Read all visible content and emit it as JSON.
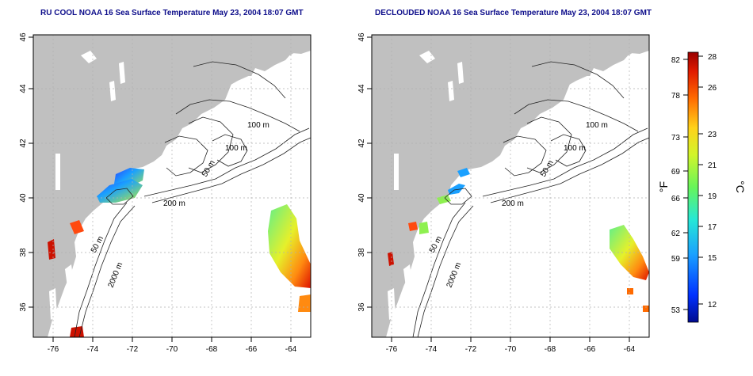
{
  "maps": [
    {
      "title": "RU COOL NOAA 16 Sea Surface Temperature May 23, 2004 18:07 GMT",
      "x_ticks": [
        "-76",
        "-74",
        "-72",
        "-70",
        "-68",
        "-66",
        "-64"
      ],
      "y_ticks": [
        "36",
        "38",
        "40",
        "42",
        "44",
        "46"
      ],
      "contour_labels": [
        "100 m",
        "100 m",
        "50 m",
        "200 m",
        "50 m",
        "2000 m"
      ]
    },
    {
      "title": "DECLOUDED NOAA 16 Sea Surface Temperature May 23, 2004 18:07 GMT",
      "x_ticks": [
        "-76",
        "-74",
        "-72",
        "-70",
        "-68",
        "-66",
        "-64"
      ],
      "y_ticks": [
        "36",
        "38",
        "40",
        "42",
        "44",
        "46"
      ],
      "contour_labels": [
        "100 m",
        "100 m",
        "50 m",
        "200 m",
        "50 m",
        "2000 m"
      ]
    }
  ],
  "colorbar": {
    "f_unit": "°F",
    "c_unit": "°C",
    "f_ticks": [
      "82",
      "78",
      "73",
      "69",
      "66",
      "62",
      "59",
      "53"
    ],
    "c_ticks": [
      "28",
      "26",
      "23",
      "21",
      "19",
      "17",
      "15",
      "12"
    ],
    "colors": [
      "#000a8f",
      "#0031ff",
      "#1aa0ff",
      "#26e8d6",
      "#67f55a",
      "#d2f52a",
      "#ffd21a",
      "#ff6a00",
      "#e01a00",
      "#9a0000"
    ]
  },
  "colors": {
    "land": "#c0c0c0",
    "ocean": "#ffffff",
    "title": "#0c0c8a",
    "contour": "#222222"
  }
}
